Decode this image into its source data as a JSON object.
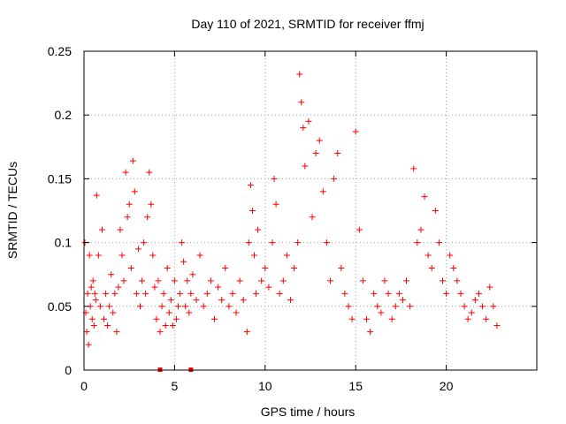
{
  "chart_data": {
    "type": "scatter",
    "title": "Day 110 of 2021, SRMTID for receiver ffmj",
    "xlabel": "GPS time / hours",
    "ylabel": "SRMTID / TECUs",
    "xlim": [
      0,
      25
    ],
    "ylim": [
      0,
      0.25
    ],
    "xticks": [
      0,
      5,
      10,
      15,
      20
    ],
    "yticks": [
      0,
      0.05,
      0.1,
      0.15,
      0.2,
      0.25
    ],
    "xtick_labels": [
      "0",
      "5",
      "10",
      "15",
      "20"
    ],
    "ytick_labels": [
      "0",
      "0.05",
      "0.1",
      "0.15",
      "0.2",
      "0.25"
    ],
    "grid": true,
    "marker": "+",
    "color": "#ff0000",
    "series": [
      {
        "name": "SRMTID",
        "x": [
          0.05,
          0.1,
          0.15,
          0.2,
          0.25,
          0.3,
          0.35,
          0.4,
          0.45,
          0.5,
          0.55,
          0.6,
          0.65,
          0.7,
          0.8,
          0.9,
          1.0,
          1.1,
          1.2,
          1.3,
          1.4,
          1.5,
          1.6,
          1.7,
          1.8,
          1.9,
          2.0,
          2.1,
          2.2,
          2.3,
          2.4,
          2.5,
          2.6,
          2.7,
          2.8,
          2.9,
          3.0,
          3.1,
          3.2,
          3.3,
          3.4,
          3.5,
          3.6,
          3.7,
          3.8,
          3.9,
          4.0,
          4.1,
          4.2,
          4.3,
          4.4,
          4.5,
          4.6,
          4.7,
          4.8,
          4.9,
          5.0,
          5.1,
          5.2,
          5.3,
          5.4,
          5.5,
          5.6,
          5.7,
          5.8,
          5.9,
          6.0,
          6.2,
          6.4,
          6.6,
          6.8,
          7.0,
          7.2,
          7.4,
          7.6,
          7.8,
          8.0,
          8.2,
          8.4,
          8.6,
          8.8,
          9.0,
          9.1,
          9.2,
          9.3,
          9.4,
          9.5,
          9.6,
          9.8,
          10.0,
          10.2,
          10.4,
          10.5,
          10.6,
          10.8,
          11.0,
          11.2,
          11.4,
          11.6,
          11.8,
          11.9,
          12.0,
          12.1,
          12.2,
          12.4,
          12.6,
          12.8,
          13.0,
          13.2,
          13.4,
          13.6,
          13.8,
          14.0,
          14.2,
          14.4,
          14.6,
          14.8,
          15.0,
          15.2,
          15.4,
          15.6,
          15.8,
          16.0,
          16.2,
          16.4,
          16.6,
          16.8,
          17.0,
          17.2,
          17.4,
          17.6,
          17.8,
          18.0,
          18.2,
          18.4,
          18.6,
          18.8,
          19.0,
          19.2,
          19.4,
          19.6,
          19.8,
          20.0,
          20.2,
          20.4,
          20.6,
          20.8,
          21.0,
          21.2,
          21.4,
          21.6,
          21.8,
          22.0,
          22.2,
          22.4,
          22.6,
          22.8
        ],
        "y": [
          0.1,
          0.045,
          0.03,
          0.06,
          0.02,
          0.09,
          0.05,
          0.065,
          0.04,
          0.07,
          0.035,
          0.06,
          0.055,
          0.137,
          0.09,
          0.05,
          0.11,
          0.04,
          0.06,
          0.035,
          0.05,
          0.075,
          0.045,
          0.06,
          0.03,
          0.065,
          0.11,
          0.09,
          0.07,
          0.155,
          0.12,
          0.13,
          0.08,
          0.164,
          0.14,
          0.06,
          0.095,
          0.05,
          0.07,
          0.1,
          0.06,
          0.12,
          0.155,
          0.13,
          0.09,
          0.065,
          0.04,
          0.07,
          0.03,
          0.05,
          0.06,
          0.035,
          0.08,
          0.045,
          0.055,
          0.035,
          0.07,
          0.04,
          0.05,
          0.06,
          0.1,
          0.085,
          0.05,
          0.07,
          0.045,
          0.06,
          0.075,
          0.055,
          0.09,
          0.05,
          0.06,
          0.07,
          0.04,
          0.065,
          0.055,
          0.08,
          0.05,
          0.06,
          0.045,
          0.07,
          0.055,
          0.03,
          0.1,
          0.145,
          0.125,
          0.09,
          0.06,
          0.11,
          0.07,
          0.08,
          0.065,
          0.1,
          0.15,
          0.13,
          0.06,
          0.07,
          0.09,
          0.055,
          0.08,
          0.1,
          0.232,
          0.21,
          0.19,
          0.16,
          0.195,
          0.12,
          0.17,
          0.18,
          0.14,
          0.1,
          0.07,
          0.15,
          0.17,
          0.08,
          0.06,
          0.05,
          0.04,
          0.187,
          0.11,
          0.07,
          0.04,
          0.03,
          0.06,
          0.05,
          0.045,
          0.07,
          0.06,
          0.04,
          0.05,
          0.06,
          0.055,
          0.07,
          0.05,
          0.158,
          0.1,
          0.11,
          0.136,
          0.09,
          0.08,
          0.125,
          0.1,
          0.07,
          0.06,
          0.09,
          0.08,
          0.07,
          0.06,
          0.05,
          0.04,
          0.045,
          0.055,
          0.06,
          0.05,
          0.04,
          0.065,
          0.05,
          0.035
        ]
      }
    ],
    "missing_markers_x": [
      4.2,
      5.9
    ]
  }
}
